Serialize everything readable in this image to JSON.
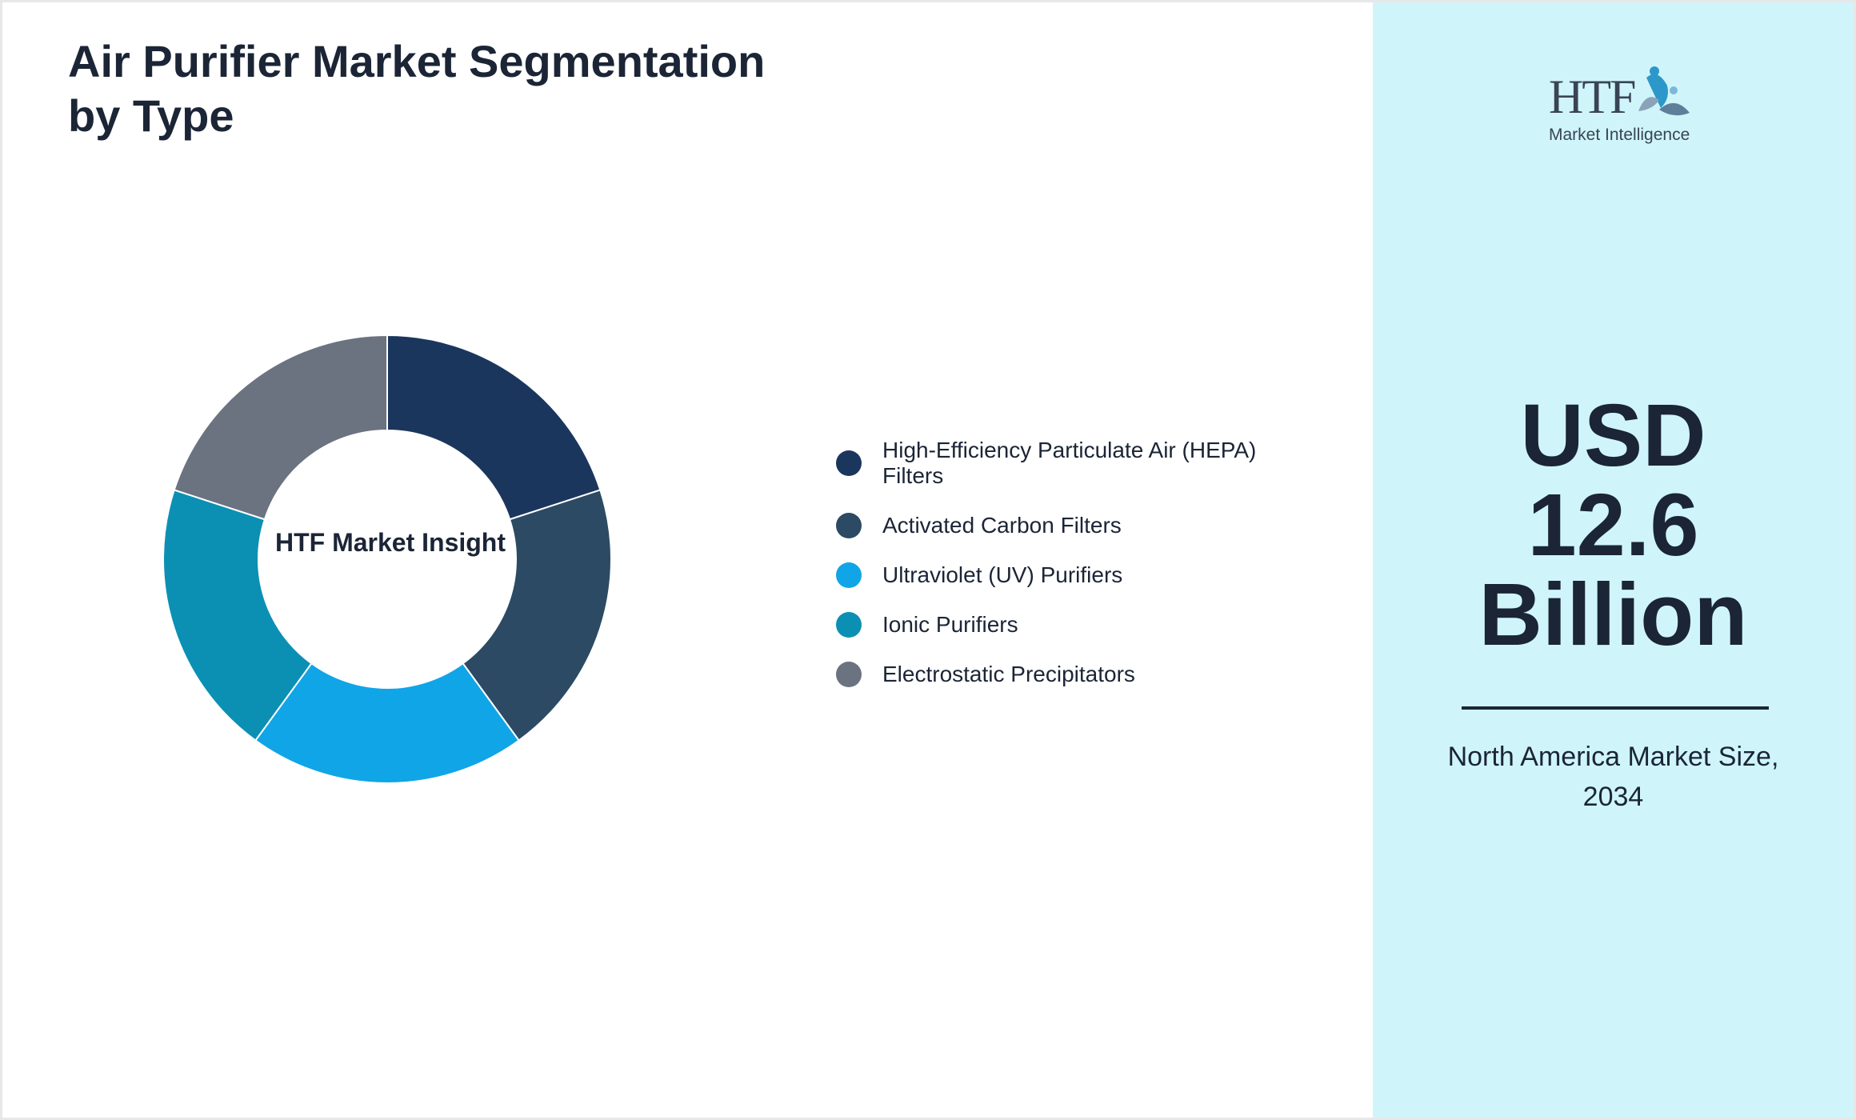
{
  "title": "Air Purifier Market Segmentation by Type",
  "chart_data": {
    "type": "donut",
    "center_label": "HTF Market Insight",
    "categories": [
      "High-Efficiency Particulate Air (HEPA) Filters",
      "Activated Carbon Filters",
      "Ultraviolet (UV) Purifiers",
      "Ionic Purifiers",
      "Electrostatic Precipitators"
    ],
    "values": [
      20,
      20,
      20,
      20,
      20
    ],
    "colors": [
      "#1b365d",
      "#2c4a63",
      "#10a5e6",
      "#0b90b4",
      "#6b7280"
    ],
    "legend_position": "right"
  },
  "sidebar": {
    "logo": {
      "text": "HTF",
      "subtitle": "Market Intelligence"
    },
    "metric_lines": [
      "USD",
      "12.6",
      "Billion"
    ],
    "caption_lines": [
      "North America Market Size,",
      "2034"
    ]
  }
}
